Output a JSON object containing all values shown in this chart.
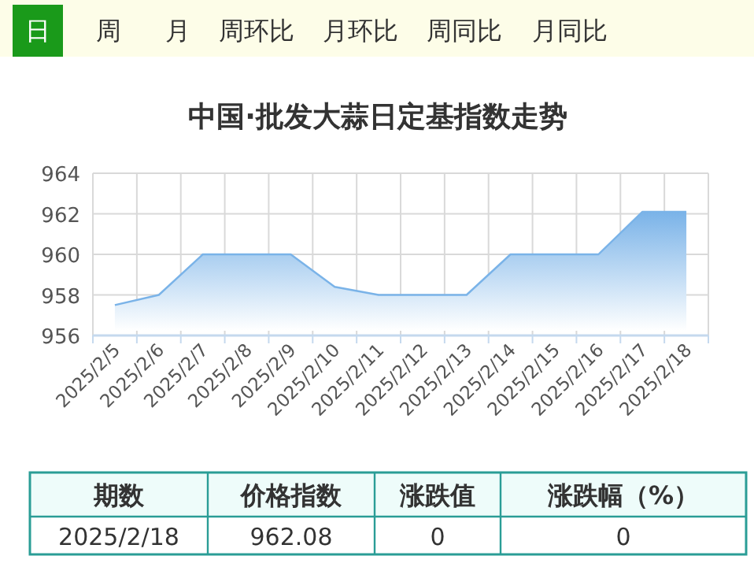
{
  "chart_data": {
    "type": "area",
    "title": "中国·批发大蒜日定基指数走势",
    "categories": [
      "2025/2/5",
      "2025/2/6",
      "2025/2/7",
      "2025/2/8",
      "2025/2/9",
      "2025/2/10",
      "2025/2/11",
      "2025/2/12",
      "2025/2/13",
      "2025/2/14",
      "2025/2/15",
      "2025/2/16",
      "2025/2/17",
      "2025/2/18"
    ],
    "series": [
      {
        "color": "#7ab3e8",
        "values": [
          957.5,
          958.0,
          960.0,
          960.0,
          960.0,
          958.4,
          958.0,
          958.0,
          958.0,
          960.0,
          960.0,
          960.0,
          962.1,
          962.1
        ]
      }
    ],
    "ylim": [
      956,
      964
    ],
    "yticks": [
      956,
      958,
      960,
      962,
      964
    ],
    "grid": true,
    "annotations": [
      "日",
      "周",
      "月",
      "周环比",
      "月环比",
      "周同比",
      "月同比",
      "期数",
      "价格指数",
      "涨跌值",
      "涨跌幅（%）",
      "2025/2/18",
      "962.08",
      "0",
      "0"
    ]
  }
}
